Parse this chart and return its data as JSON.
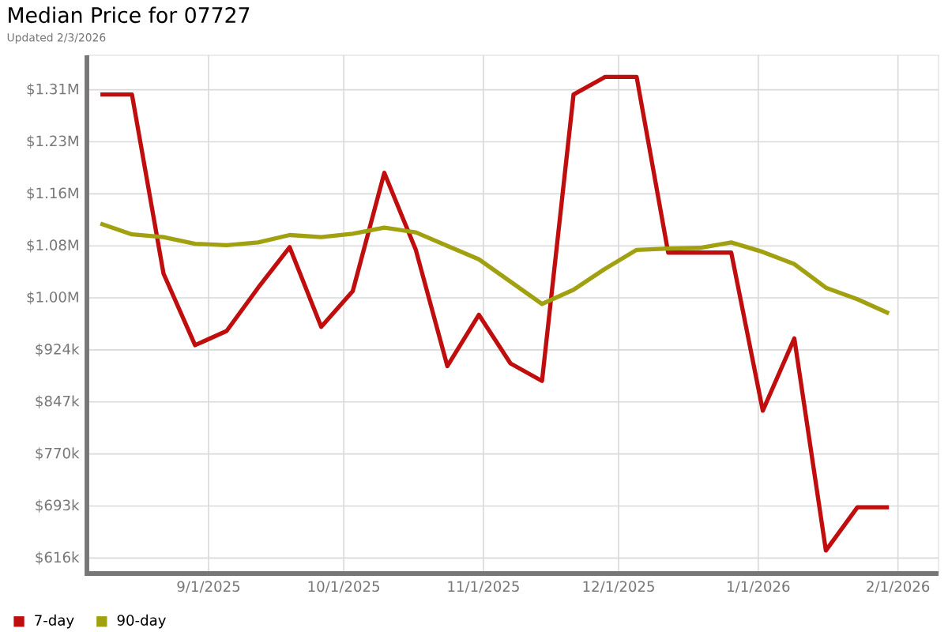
{
  "chart_data": {
    "type": "line",
    "title": "Median Price for 07727",
    "subtitle": "Updated 2/3/2026",
    "x": [
      "2025-08-08",
      "2025-08-15",
      "2025-08-22",
      "2025-08-29",
      "2025-09-05",
      "2025-09-12",
      "2025-09-19",
      "2025-09-26",
      "2025-10-03",
      "2025-10-10",
      "2025-10-17",
      "2025-10-24",
      "2025-10-31",
      "2025-11-07",
      "2025-11-14",
      "2025-11-21",
      "2025-11-28",
      "2025-12-05",
      "2025-12-12",
      "2025-12-19",
      "2025-12-26",
      "2026-01-02",
      "2026-01-09",
      "2026-01-16",
      "2026-01-23",
      "2026-01-30"
    ],
    "series": [
      {
        "name": "7-day",
        "color": "#c00d0d",
        "values": [
          1302000,
          1302000,
          1037000,
          931000,
          952000,
          1016000,
          1076000,
          958000,
          1011000,
          1186000,
          1072000,
          900000,
          976000,
          904000,
          878000,
          1302000,
          1328000,
          1328000,
          1068000,
          1068000,
          1068000,
          834000,
          941000,
          627000,
          691000,
          691000
        ]
      },
      {
        "name": "90-day",
        "color": "#a0a010",
        "values": [
          1111000,
          1095000,
          1091000,
          1081000,
          1079000,
          1083000,
          1094000,
          1091000,
          1096000,
          1105000,
          1098000,
          1078000,
          1058000,
          1025000,
          992000,
          1013000,
          1044000,
          1072000,
          1074000,
          1075000,
          1083000,
          1069000,
          1051000,
          1016000,
          999000,
          978000
        ]
      }
    ],
    "xlim": [
      "2025-08-05",
      "2026-02-10"
    ],
    "xticks": [
      {
        "value": "2025-09-01",
        "label": "9/1/2025"
      },
      {
        "value": "2025-10-01",
        "label": "10/1/2025"
      },
      {
        "value": "2025-11-01",
        "label": "11/1/2025"
      },
      {
        "value": "2025-12-01",
        "label": "12/1/2025"
      },
      {
        "value": "2026-01-01",
        "label": "1/1/2026"
      },
      {
        "value": "2026-02-01",
        "label": "2/1/2026"
      }
    ],
    "ylim": [
      593000,
      1360000
    ],
    "yticks": [
      {
        "value": 616000,
        "label": "$616k"
      },
      {
        "value": 693000,
        "label": "$693k"
      },
      {
        "value": 770000,
        "label": "$770k"
      },
      {
        "value": 847000,
        "label": "$847k"
      },
      {
        "value": 924000,
        "label": "$924k"
      },
      {
        "value": 1001000,
        "label": "$1.00M"
      },
      {
        "value": 1078000,
        "label": "$1.08M"
      },
      {
        "value": 1155000,
        "label": "$1.16M"
      },
      {
        "value": 1232000,
        "label": "$1.23M"
      },
      {
        "value": 1309000,
        "label": "$1.31M"
      }
    ],
    "grid": true,
    "legend": "bottom left"
  }
}
